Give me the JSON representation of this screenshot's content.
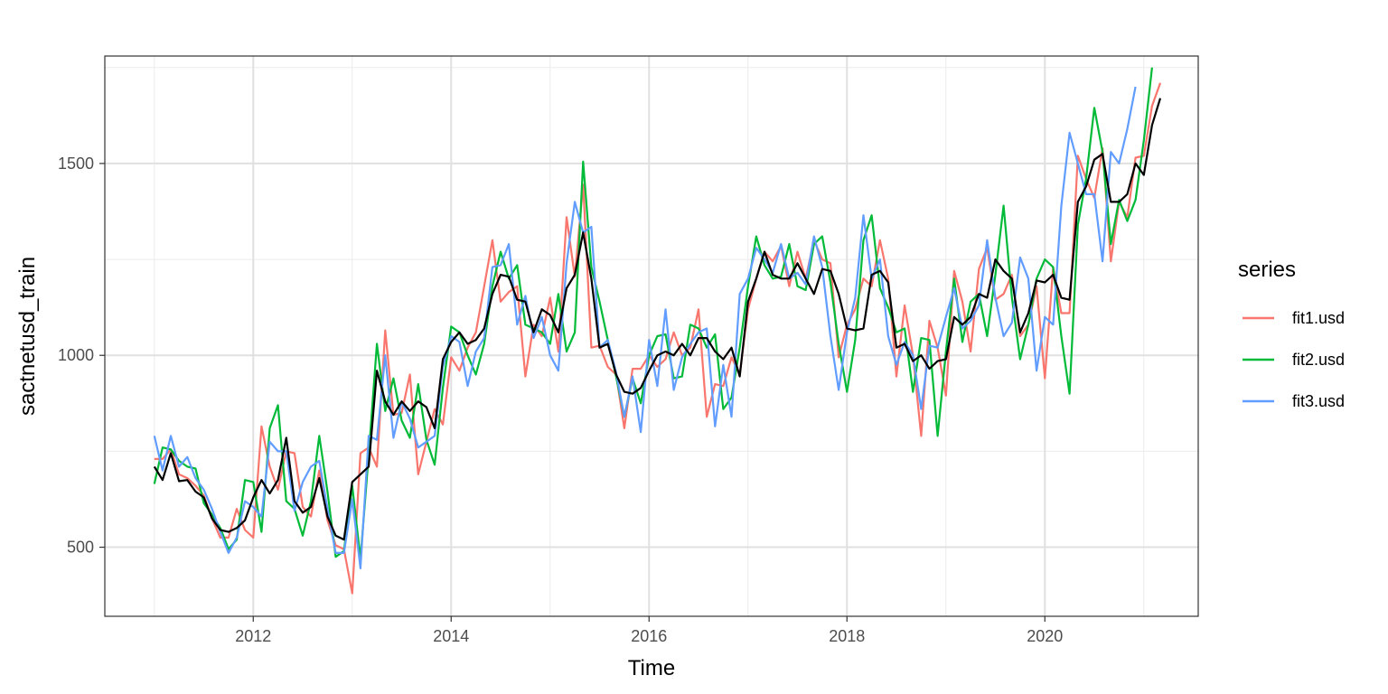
{
  "chart_data": {
    "type": "line",
    "xlabel": "Time",
    "ylabel": "sactnetusd_train",
    "xlim": [
      2010.5,
      2021.55
    ],
    "ylim": [
      320,
      1780
    ],
    "x_ticks": [
      2012,
      2014,
      2016,
      2018,
      2020
    ],
    "x_tick_labels": [
      "2012",
      "2014",
      "2016",
      "2018",
      "2020"
    ],
    "y_ticks": [
      500,
      1000,
      1500
    ],
    "y_tick_labels": [
      "500",
      "1000",
      "1500"
    ],
    "grid": true,
    "legend": {
      "title": "series",
      "position": "right"
    },
    "x_start": 2011.0,
    "x_step_years": 0.083333,
    "series": [
      {
        "name": "",
        "color": "#000000",
        "values": [
          710,
          675,
          745,
          672,
          675,
          645,
          630,
          575,
          545,
          540,
          550,
          570,
          630,
          675,
          640,
          675,
          785,
          620,
          590,
          605,
          680,
          580,
          530,
          520,
          670,
          690,
          710,
          960,
          880,
          845,
          880,
          855,
          880,
          865,
          810,
          990,
          1035,
          1060,
          1030,
          1040,
          1070,
          1160,
          1210,
          1205,
          1145,
          1140,
          1060,
          1120,
          1105,
          1060,
          1175,
          1210,
          1320,
          1200,
          1020,
          1030,
          950,
          905,
          900,
          915,
          960,
          1000,
          1010,
          1000,
          1030,
          1000,
          1045,
          1045,
          1010,
          990,
          1020,
          945,
          1140,
          1200,
          1270,
          1210,
          1200,
          1200,
          1240,
          1200,
          1160,
          1225,
          1220,
          1160,
          1070,
          1065,
          1070,
          1210,
          1220,
          1190,
          1020,
          1030,
          985,
          1000,
          965,
          985,
          990,
          1100,
          1080,
          1100,
          1160,
          1150,
          1250,
          1220,
          1200,
          1060,
          1110,
          1195,
          1190,
          1210,
          1150,
          1145,
          1400,
          1440,
          1510,
          1525,
          1400,
          1400,
          1420,
          1500,
          1470,
          1600,
          1670
        ]
      },
      {
        "name": "fit1.usd",
        "color": "#F8766D",
        "values": [
          730,
          730,
          755,
          690,
          680,
          660,
          635,
          575,
          525,
          525,
          600,
          545,
          525,
          815,
          710,
          650,
          750,
          745,
          605,
          580,
          700,
          570,
          505,
          495,
          380,
          745,
          760,
          710,
          1065,
          845,
          850,
          950,
          690,
          775,
          860,
          820,
          995,
          960,
          1020,
          1060,
          1180,
          1300,
          1140,
          1165,
          1180,
          945,
          1080,
          1050,
          1150,
          1010,
          1360,
          1205,
          1445,
          1020,
          1025,
          970,
          950,
          810,
          965,
          965,
          1000,
          970,
          990,
          1060,
          1000,
          1020,
          1120,
          840,
          925,
          920,
          995,
          950,
          1120,
          1200,
          1270,
          1245,
          1285,
          1180,
          1270,
          1200,
          1300,
          1250,
          1240,
          995,
          1080,
          1120,
          1200,
          1180,
          1300,
          1200,
          945,
          1130,
          1000,
          790,
          1090,
          1020,
          895,
          1220,
          1140,
          1010,
          1225,
          1280,
          1145,
          1160,
          1210,
          1050,
          1080,
          1180,
          940,
          1230,
          1110,
          1110,
          1520,
          1460,
          1410,
          1540,
          1245,
          1400,
          1360,
          1515,
          1520,
          1650,
          1710
        ]
      },
      {
        "name": "fit2.usd",
        "color": "#00BA38",
        "values": [
          665,
          760,
          755,
          725,
          710,
          705,
          615,
          585,
          550,
          495,
          520,
          675,
          670,
          540,
          810,
          870,
          620,
          600,
          530,
          620,
          790,
          645,
          475,
          490,
          660,
          470,
          740,
          1030,
          855,
          940,
          830,
          785,
          925,
          780,
          715,
          915,
          1075,
          1060,
          1000,
          950,
          1030,
          1180,
          1270,
          1200,
          1235,
          1080,
          1070,
          1060,
          1030,
          1160,
          1010,
          1060,
          1505,
          1230,
          1140,
          1040,
          945,
          840,
          940,
          875,
          1000,
          1050,
          1055,
          940,
          945,
          1080,
          1070,
          1020,
          1055,
          860,
          890,
          1020,
          1180,
          1310,
          1235,
          1200,
          1205,
          1290,
          1180,
          1170,
          1290,
          1310,
          1190,
          1030,
          905,
          1040,
          1300,
          1365,
          1175,
          1125,
          1060,
          1070,
          905,
          1045,
          1040,
          790,
          1010,
          1200,
          1035,
          1140,
          1160,
          1050,
          1210,
          1390,
          1150,
          990,
          1080,
          1200,
          1250,
          1230,
          1050,
          900,
          1340,
          1460,
          1645,
          1530,
          1290,
          1405,
          1350,
          1405,
          1560,
          1750
        ]
      },
      {
        "name": "fit3.usd",
        "color": "#619CFF",
        "values": [
          790,
          700,
          790,
          710,
          735,
          680,
          650,
          600,
          540,
          485,
          525,
          620,
          605,
          580,
          775,
          750,
          750,
          595,
          670,
          710,
          725,
          600,
          485,
          485,
          625,
          445,
          790,
          780,
          1000,
          785,
          880,
          835,
          760,
          775,
          790,
          970,
          1050,
          1035,
          920,
          1010,
          1045,
          1230,
          1235,
          1290,
          1080,
          1155,
          1045,
          1100,
          1000,
          960,
          1240,
          1400,
          1320,
          1335,
          1020,
          1040,
          955,
          840,
          945,
          800,
          1040,
          920,
          1120,
          910,
          995,
          1030,
          1060,
          1070,
          815,
          975,
          840,
          1160,
          1200,
          1280,
          1250,
          1215,
          1290,
          1200,
          1215,
          1185,
          1310,
          1230,
          1050,
          910,
          1060,
          1150,
          1365,
          1200,
          1250,
          1050,
          975,
          1035,
          1000,
          860,
          1025,
          1020,
          1100,
          1175,
          1070,
          1090,
          1130,
          1300,
          1150,
          1050,
          1085,
          1255,
          1200,
          960,
          1100,
          1080,
          1390,
          1580,
          1500,
          1420,
          1420,
          1245,
          1530,
          1500,
          1590,
          1700
        ]
      }
    ]
  }
}
